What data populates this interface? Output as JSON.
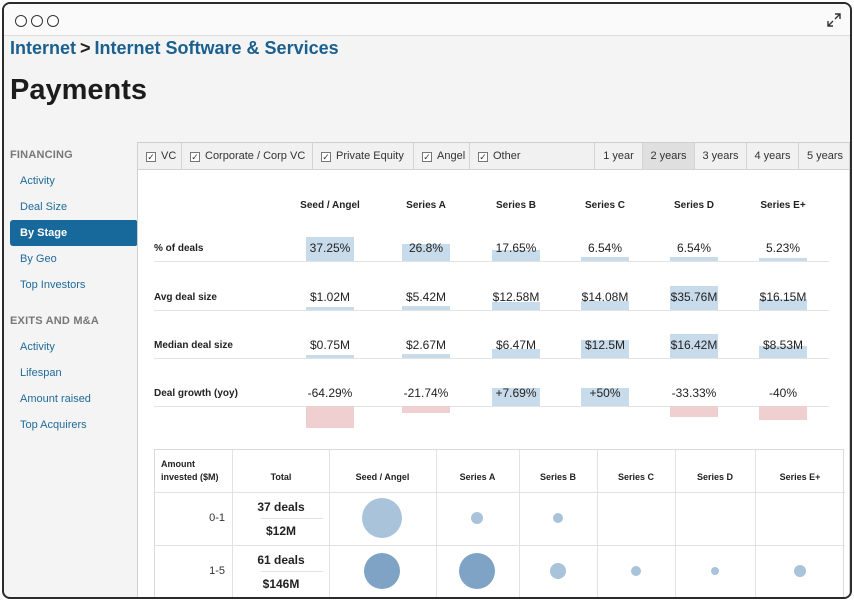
{
  "breadcrumb": {
    "parent": "Internet",
    "separator": ">",
    "current": "Internet Software & Services"
  },
  "page": {
    "title": "Payments"
  },
  "sidebar": {
    "financing_heading": "FINANCING",
    "financing_items": [
      "Activity",
      "Deal Size",
      "By Stage",
      "By Geo",
      "Top Investors"
    ],
    "exits_heading": "EXITS AND M&A",
    "exits_items": [
      "Activity",
      "Lifespan",
      "Amount raised",
      "Top Acquirers"
    ],
    "active_item": "By Stage"
  },
  "filters": {
    "investor_types": [
      {
        "label": "VC",
        "checked": true
      },
      {
        "label": "Corporate / Corp VC",
        "checked": true
      },
      {
        "label": "Private Equity",
        "checked": true
      },
      {
        "label": "Angel",
        "checked": true
      },
      {
        "label": "Other",
        "checked": true
      }
    ],
    "periods": [
      "1 year",
      "2 years",
      "3 years",
      "4 years",
      "5 years"
    ],
    "active_period": "2 years"
  },
  "stage_table": {
    "stages": [
      "Seed / Angel",
      "Series A",
      "Series B",
      "Series C",
      "Series D",
      "Series E+"
    ],
    "rows": [
      {
        "label": "% of deals",
        "values": [
          "37.25%",
          "26.8%",
          "17.65%",
          "6.54%",
          "6.54%",
          "5.23%"
        ],
        "numbers": [
          37.25,
          26.8,
          17.65,
          6.54,
          6.54,
          5.23
        ]
      },
      {
        "label": "Avg deal size",
        "values": [
          "$1.02M",
          "$5.42M",
          "$12.58M",
          "$14.08M",
          "$35.76M",
          "$16.15M"
        ],
        "numbers": [
          1.02,
          5.42,
          12.58,
          14.08,
          35.76,
          16.15
        ]
      },
      {
        "label": "Median deal size",
        "values": [
          "$0.75M",
          "$2.67M",
          "$6.47M",
          "$12.5M",
          "$16.42M",
          "$8.53M"
        ],
        "numbers": [
          0.75,
          2.67,
          6.47,
          12.5,
          16.42,
          8.53
        ]
      },
      {
        "label": "Deal growth (yoy)",
        "values": [
          "-64.29%",
          "-21.74%",
          "+7.69%",
          "+50%",
          "-33.33%",
          "-40%"
        ],
        "numbers": [
          -64.29,
          -21.74,
          7.69,
          50,
          -33.33,
          -40
        ]
      }
    ]
  },
  "bubble_table": {
    "amount_header": "Amount invested ($M)",
    "total_header": "Total",
    "stages": [
      "Seed / Angel",
      "Series A",
      "Series B",
      "Series C",
      "Series D",
      "Series E+"
    ],
    "rows": [
      {
        "range": "0-1",
        "deals": "37 deals",
        "amount": "$12M",
        "bubbles": [
          1.0,
          0.3,
          0.27,
          0,
          0,
          0
        ]
      },
      {
        "range": "1-5",
        "deals": "61 deals",
        "amount": "$146M",
        "bubbles": [
          0.9,
          0.92,
          0.4,
          0.25,
          0.18,
          0.3
        ]
      }
    ]
  },
  "colors": {
    "accent": "#17699c",
    "link": "#1f6a9a",
    "bar_positive": "#c8dbea",
    "bar_negative": "#efcfcf",
    "bubble_light": "#a9c3da",
    "bubble_dark": "#7fa3c4"
  }
}
